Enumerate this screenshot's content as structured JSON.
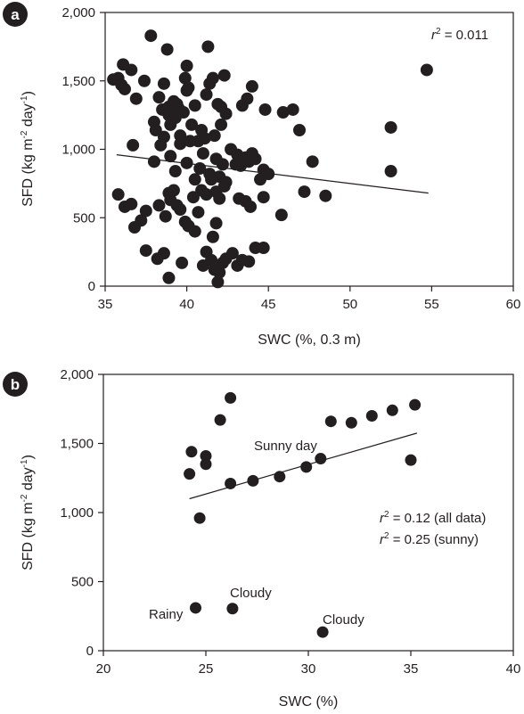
{
  "chart_data": [
    {
      "panel": "a",
      "type": "scatter",
      "xlabel": "SWC (%, 0.3 m)",
      "ylabel_main": "SFD (kg m",
      "ylabel_exp1": "-2",
      "ylabel_mid": " day",
      "ylabel_exp2": "-1",
      "ylabel_end": ")",
      "xlim": [
        35,
        60
      ],
      "ylim": [
        0,
        2000
      ],
      "x_ticks": [
        35,
        40,
        45,
        50,
        55,
        60
      ],
      "y_ticks": [
        0,
        500,
        1000,
        1500,
        2000
      ],
      "x_tick_labels": [
        "35",
        "40",
        "45",
        "50",
        "55",
        "60"
      ],
      "y_tick_labels": [
        "0",
        "500",
        "1,000",
        "1,500",
        "2,000"
      ],
      "grid": false,
      "annotations": [
        {
          "var": "r",
          "exp": "2",
          "text": " = 0.011"
        }
      ],
      "fit_line": [
        [
          35.7,
          960
        ],
        [
          54.8,
          680
        ]
      ],
      "points": [
        [
          35.5,
          1510
        ],
        [
          35.8,
          1520
        ],
        [
          36.1,
          1620
        ],
        [
          36.2,
          1440
        ],
        [
          36.0,
          1470
        ],
        [
          36.6,
          1580
        ],
        [
          36.9,
          1370
        ],
        [
          37.4,
          1500
        ],
        [
          37.8,
          1830
        ],
        [
          38.0,
          1200
        ],
        [
          38.1,
          1140
        ],
        [
          38.3,
          1380
        ],
        [
          38.4,
          1030
        ],
        [
          38.5,
          1290
        ],
        [
          38.6,
          1480
        ],
        [
          38.8,
          1730
        ],
        [
          38.9,
          1250
        ],
        [
          38.9,
          1310
        ],
        [
          39.0,
          1180
        ],
        [
          39.1,
          1280
        ],
        [
          39.2,
          1350
        ],
        [
          39.3,
          1230
        ],
        [
          39.4,
          1330
        ],
        [
          39.5,
          1300
        ],
        [
          39.6,
          1100
        ],
        [
          39.8,
          1270
        ],
        [
          39.9,
          1520
        ],
        [
          40.0,
          1430
        ],
        [
          40.1,
          1450
        ],
        [
          40.0,
          1610
        ],
        [
          40.3,
          1180
        ],
        [
          40.5,
          1320
        ],
        [
          40.7,
          1060
        ],
        [
          40.9,
          1140
        ],
        [
          41.2,
          1400
        ],
        [
          41.3,
          1750
        ],
        [
          41.4,
          1480
        ],
        [
          41.6,
          1520
        ],
        [
          41.9,
          1330
        ],
        [
          42.1,
          1310
        ],
        [
          42.3,
          1540
        ],
        [
          42.4,
          1260
        ],
        [
          42.1,
          1180
        ],
        [
          36.7,
          1030
        ],
        [
          38.0,
          910
        ],
        [
          38.6,
          1090
        ],
        [
          39.0,
          950
        ],
        [
          39.3,
          840
        ],
        [
          39.6,
          1040
        ],
        [
          40.0,
          900
        ],
        [
          40.2,
          1060
        ],
        [
          40.5,
          780
        ],
        [
          40.8,
          860
        ],
        [
          41.0,
          970
        ],
        [
          41.1,
          1080
        ],
        [
          41.4,
          820
        ],
        [
          41.7,
          1100
        ],
        [
          41.8,
          930
        ],
        [
          42.0,
          800
        ],
        [
          42.2,
          890
        ],
        [
          42.4,
          760
        ],
        [
          42.7,
          1000
        ],
        [
          43.0,
          890
        ],
        [
          43.1,
          960
        ],
        [
          43.3,
          880
        ],
        [
          43.6,
          940
        ],
        [
          43.8,
          910
        ],
        [
          44.0,
          970
        ],
        [
          44.2,
          930
        ],
        [
          44.5,
          780
        ],
        [
          44.7,
          850
        ],
        [
          45.0,
          820
        ],
        [
          43.4,
          1320
        ],
        [
          43.7,
          1370
        ],
        [
          44.0,
          1460
        ],
        [
          44.8,
          1290
        ],
        [
          45.9,
          1270
        ],
        [
          46.5,
          1290
        ],
        [
          46.9,
          1140
        ],
        [
          47.7,
          910
        ],
        [
          35.8,
          670
        ],
        [
          36.2,
          580
        ],
        [
          36.6,
          600
        ],
        [
          36.8,
          430
        ],
        [
          37.2,
          480
        ],
        [
          37.5,
          550
        ],
        [
          38.3,
          590
        ],
        [
          38.7,
          510
        ],
        [
          38.9,
          680
        ],
        [
          39.0,
          630
        ],
        [
          39.2,
          700
        ],
        [
          39.4,
          590
        ],
        [
          39.6,
          560
        ],
        [
          39.9,
          470
        ],
        [
          40.1,
          440
        ],
        [
          40.4,
          650
        ],
        [
          40.7,
          540
        ],
        [
          40.9,
          700
        ],
        [
          41.2,
          670
        ],
        [
          41.5,
          780
        ],
        [
          41.8,
          690
        ],
        [
          42.0,
          640
        ],
        [
          42.3,
          730
        ],
        [
          43.2,
          640
        ],
        [
          43.6,
          620
        ],
        [
          43.9,
          580
        ],
        [
          44.7,
          650
        ],
        [
          45.8,
          520
        ],
        [
          47.2,
          690
        ],
        [
          48.5,
          660
        ],
        [
          37.5,
          260
        ],
        [
          38.2,
          200
        ],
        [
          38.6,
          240
        ],
        [
          38.9,
          60
        ],
        [
          39.7,
          170
        ],
        [
          40.1,
          440
        ],
        [
          40.5,
          400
        ],
        [
          41.0,
          150
        ],
        [
          41.2,
          250
        ],
        [
          41.5,
          190
        ],
        [
          41.7,
          120
        ],
        [
          41.9,
          30
        ],
        [
          42.0,
          100
        ],
        [
          42.2,
          170
        ],
        [
          42.4,
          200
        ],
        [
          42.8,
          240
        ],
        [
          43.1,
          150
        ],
        [
          43.4,
          190
        ],
        [
          43.8,
          180
        ],
        [
          44.2,
          280
        ],
        [
          44.7,
          280
        ],
        [
          41.6,
          360
        ],
        [
          41.8,
          460
        ],
        [
          52.5,
          1160
        ],
        [
          52.5,
          840
        ],
        [
          54.7,
          1580
        ]
      ]
    },
    {
      "panel": "b",
      "type": "scatter",
      "xlabel": "SWC (%)",
      "ylabel_main": "SFD (kg m",
      "ylabel_exp1": "-2",
      "ylabel_mid": " day",
      "ylabel_exp2": "-1",
      "ylabel_end": ")",
      "xlim": [
        20,
        40
      ],
      "ylim": [
        0,
        2000
      ],
      "x_ticks": [
        20,
        25,
        30,
        35,
        40
      ],
      "y_ticks": [
        0,
        500,
        1000,
        1500,
        2000
      ],
      "x_tick_labels": [
        "20",
        "25",
        "30",
        "35",
        "40"
      ],
      "y_tick_labels": [
        "0",
        "500",
        "1,000",
        "1,500",
        "2,000"
      ],
      "grid": false,
      "annotations": [
        {
          "var": "r",
          "exp": "2",
          "text": " = 0.12 (all data)"
        },
        {
          "var": "r",
          "exp": "2",
          "text": " = 0.25 (sunny)"
        }
      ],
      "point_labels": [
        "Sunny day",
        "Cloudy",
        "Rainy",
        "Cloudy"
      ],
      "fit_line": [
        [
          24.2,
          1100
        ],
        [
          35.3,
          1575
        ]
      ],
      "points": [
        [
          26.2,
          1830
        ],
        [
          25.7,
          1670
        ],
        [
          35.2,
          1780
        ],
        [
          34.1,
          1740
        ],
        [
          33.1,
          1700
        ],
        [
          32.1,
          1650
        ],
        [
          31.1,
          1660
        ],
        [
          24.3,
          1440
        ],
        [
          25.0,
          1410
        ],
        [
          24.2,
          1280
        ],
        [
          25.0,
          1350
        ],
        [
          26.2,
          1210
        ],
        [
          27.3,
          1230
        ],
        [
          28.6,
          1260
        ],
        [
          29.9,
          1330
        ],
        [
          30.6,
          1390
        ],
        [
          35.0,
          1380
        ],
        [
          24.7,
          960
        ],
        [
          24.5,
          310
        ],
        [
          26.3,
          305
        ],
        [
          30.7,
          135
        ]
      ]
    }
  ]
}
